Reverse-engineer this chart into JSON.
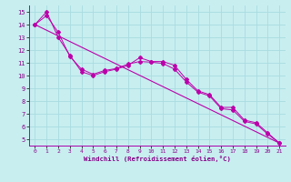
{
  "xlabel": "Windchill (Refroidissement éolien,°C)",
  "background_color": "#c8eef0",
  "line_color": "#bb00aa",
  "grid_color": "#a8dce0",
  "xlim": [
    -0.5,
    21.5
  ],
  "ylim": [
    4.5,
    15.5
  ],
  "xticks": [
    0,
    1,
    2,
    3,
    4,
    5,
    6,
    7,
    8,
    9,
    10,
    11,
    12,
    13,
    14,
    15,
    16,
    17,
    18,
    19,
    20,
    21
  ],
  "yticks": [
    5,
    6,
    7,
    8,
    9,
    10,
    11,
    12,
    13,
    14,
    15
  ],
  "line1_x": [
    0,
    1,
    2,
    3,
    4,
    5,
    6,
    7,
    8,
    9,
    10,
    11,
    12,
    13,
    14,
    15,
    16,
    17,
    18,
    19,
    20,
    21
  ],
  "line1_y": [
    14.0,
    15.0,
    13.0,
    11.6,
    10.3,
    10.0,
    10.3,
    10.5,
    10.8,
    11.4,
    11.1,
    11.1,
    10.8,
    9.7,
    8.8,
    8.5,
    7.5,
    7.5,
    6.5,
    6.3,
    5.5,
    4.7
  ],
  "line2_x": [
    0,
    1,
    2,
    3,
    4,
    5,
    6,
    7,
    8,
    9,
    10,
    11,
    12,
    13,
    14,
    15,
    16,
    17,
    18,
    19,
    20,
    21
  ],
  "line2_y": [
    14.0,
    14.7,
    13.4,
    11.5,
    10.5,
    10.1,
    10.4,
    10.55,
    10.9,
    11.1,
    11.05,
    10.95,
    10.5,
    9.5,
    8.7,
    8.4,
    7.4,
    7.3,
    6.4,
    6.2,
    5.4,
    4.7
  ],
  "line3_x": [
    0,
    21
  ],
  "line3_y": [
    14.0,
    4.7
  ]
}
